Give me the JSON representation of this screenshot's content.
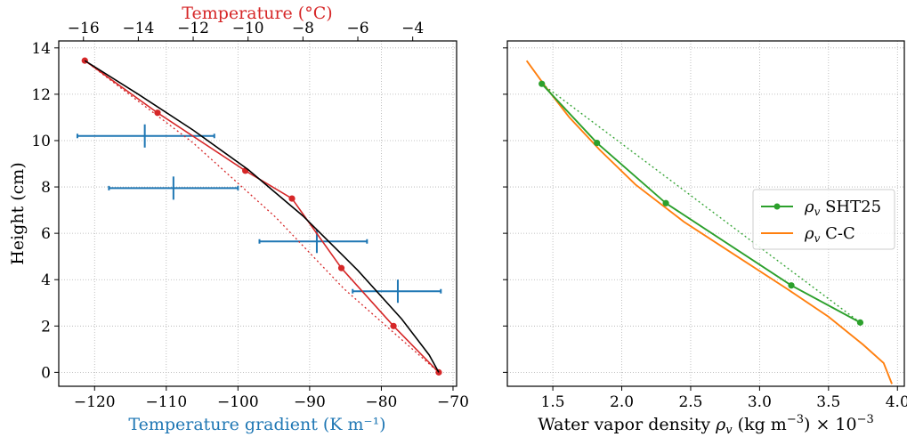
{
  "chart_data": [
    {
      "type": "line",
      "ylabel": "Height (cm)",
      "xlabel_bottom": "Temperature gradient (K m⁻¹)",
      "xlabel_top": "Temperature (°C)",
      "xlim_bottom": [
        -125,
        -69.5
      ],
      "xlim_top": [
        -16.9,
        -2.4
      ],
      "ylim": [
        -0.6,
        14.3
      ],
      "xticks_bottom": [
        -120,
        -110,
        -100,
        -90,
        -80,
        -70
      ],
      "xticks_bottom_labels": [
        "−120",
        "−110",
        "−100",
        "−90",
        "−80",
        "−70"
      ],
      "xticks_top": [
        -16,
        -14,
        -12,
        -10,
        -8,
        -6,
        -4
      ],
      "xticks_top_labels": [
        "−16",
        "−14",
        "−12",
        "−10",
        "−8",
        "−6",
        "−4"
      ],
      "yticks": [
        0,
        2,
        4,
        6,
        8,
        10,
        12,
        14
      ],
      "yticks_labels": [
        "0",
        "2",
        "4",
        "6",
        "8",
        "10",
        "12",
        "14"
      ],
      "grid": true,
      "colors": {
        "gradient": "#1f77b4",
        "temperature": "#d62728",
        "fit": "#000000"
      },
      "series": [
        {
          "axis": "bottom",
          "style": "errorbar",
          "color": "#1f77b4",
          "points": [
            {
              "x": -113,
              "y": 10.2,
              "xlo": -122.4,
              "xhi": -103.3,
              "ylo": 9.7,
              "yhi": 10.7
            },
            {
              "x": -109,
              "y": 7.95,
              "xlo": -118,
              "xhi": -100,
              "ylo": 7.45,
              "yhi": 8.45
            },
            {
              "x": -89,
              "y": 5.65,
              "xlo": -97,
              "xhi": -82,
              "ylo": 5.15,
              "yhi": 6.15
            },
            {
              "x": -77.7,
              "y": 3.5,
              "xlo": -84,
              "xhi": -71.7,
              "ylo": 3.0,
              "yhi": 4.0
            }
          ]
        },
        {
          "axis": "top",
          "style": "line-markers",
          "color": "#d62728",
          "x": [
            -15.95,
            -13.3,
            -10.1,
            -8.4,
            -6.6,
            -4.7,
            -3.05
          ],
          "y": [
            13.45,
            11.2,
            8.7,
            7.5,
            4.5,
            2.0,
            0.0
          ]
        },
        {
          "axis": "top",
          "style": "dotted",
          "color": "#d62728",
          "x": [
            -15.95,
            -12.0,
            -9.0,
            -6.5,
            -3.05
          ],
          "y": [
            13.45,
            9.9,
            6.7,
            3.6,
            0.0
          ]
        },
        {
          "axis": "top",
          "style": "solid",
          "color": "#000000",
          "x": [
            -15.95,
            -14.0,
            -12.0,
            -10.0,
            -8.0,
            -6.0,
            -4.4,
            -3.4,
            -3.05
          ],
          "y": [
            13.45,
            12.0,
            10.45,
            8.75,
            6.75,
            4.4,
            2.3,
            0.75,
            0.0
          ]
        }
      ]
    },
    {
      "type": "line",
      "xlabel_parts": {
        "prefix": "Water vapor density ",
        "symbol": "ρ",
        "sub": "v",
        "units": " (kg m",
        "exp": "−3",
        "close": ") × 10",
        "scale_exp": "−3"
      },
      "xlim": [
        1.17,
        4.05
      ],
      "ylim": [
        -0.6,
        14.3
      ],
      "xticks": [
        1.5,
        2.0,
        2.5,
        3.0,
        3.5,
        4.0
      ],
      "xticks_labels": [
        "1.5",
        "2.0",
        "2.5",
        "3.0",
        "3.5",
        "4.0"
      ],
      "yticks": [
        0,
        2,
        4,
        6,
        8,
        10,
        12,
        14
      ],
      "grid": true,
      "legend_position": "center-right",
      "series": [
        {
          "name_symbol": "ρ",
          "name_sub": "v",
          "name_text": " SHT25",
          "color": "#2ca02c",
          "style": "line-markers",
          "x": [
            1.42,
            1.82,
            2.32,
            3.23,
            3.73
          ],
          "y": [
            12.45,
            9.9,
            7.3,
            3.75,
            2.15
          ]
        },
        {
          "name_symbol": "ρ",
          "name_sub": "v",
          "name_text": " C-C",
          "color": "#ff7f0e",
          "style": "solid",
          "x": [
            1.31,
            1.45,
            1.62,
            1.84,
            2.1,
            2.45,
            2.85,
            3.2,
            3.5,
            3.75,
            3.9,
            3.96
          ],
          "y": [
            13.45,
            12.3,
            11.0,
            9.6,
            8.1,
            6.5,
            4.95,
            3.6,
            2.4,
            1.2,
            0.4,
            -0.5
          ]
        },
        {
          "color": "#2ca02c",
          "style": "dotted",
          "x": [
            1.42,
            3.73
          ],
          "y": [
            12.45,
            2.15
          ]
        }
      ]
    }
  ]
}
